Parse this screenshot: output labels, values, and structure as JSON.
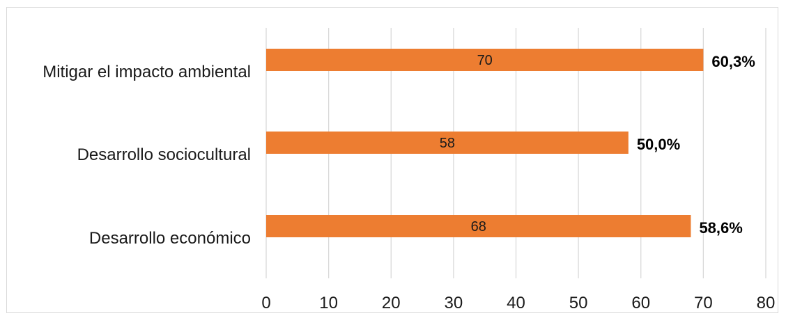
{
  "chart_data": {
    "type": "bar",
    "orientation": "horizontal",
    "categories": [
      "Mitigar el impacto ambiental",
      "Desarrollo sociocultural",
      "Desarrollo económico"
    ],
    "values": [
      70,
      58,
      68
    ],
    "value_labels": [
      "70",
      "58",
      "68"
    ],
    "percent_labels": [
      "60,3%",
      "50,0%",
      "58,6%"
    ],
    "xlim": [
      0,
      80
    ],
    "x_ticks": [
      "0",
      "10",
      "20",
      "30",
      "40",
      "50",
      "60",
      "70",
      "80"
    ],
    "grid": "vertical",
    "bar_color": "#ED7D31",
    "grid_color": "#d9d9d9"
  }
}
